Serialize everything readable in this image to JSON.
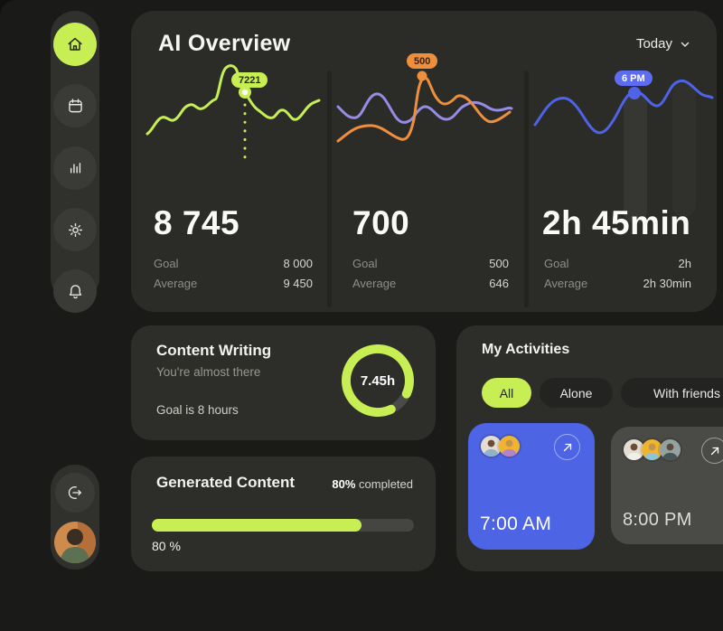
{
  "colors": {
    "lime": "#c7ef54",
    "orange": "#ee8f3d",
    "purple": "#958ce6",
    "blue": "#4f63e8",
    "tile_blue": "#4d64e4",
    "badge_blue": "#5d6cf0",
    "panel_bg": "#2b2b28",
    "page_bg": "#1a1a18"
  },
  "icons": {
    "sidebar": [
      "home-icon",
      "calendar-icon",
      "bar-chart-icon",
      "gear-icon",
      "bell-icon"
    ],
    "logout": "logout-icon",
    "period": "chevron-down-icon",
    "tile_link": "arrow-up-right-icon"
  },
  "header": {
    "title": "AI Overview",
    "period_selector": {
      "value": "Today"
    }
  },
  "stats": [
    {
      "badge": "7221",
      "value": "8 745",
      "goal_label": "Goal",
      "goal_value": "8 000",
      "average_label": "Average",
      "average_value": "9 450"
    },
    {
      "badge": "500",
      "value": "700",
      "goal_label": "Goal",
      "goal_value": "500",
      "average_label": "Average",
      "average_value": "646"
    },
    {
      "badge": "6 PM",
      "value": "2h 45min",
      "goal_label": "Goal",
      "goal_value": "2h",
      "average_label": "Average",
      "average_value": "2h 30min"
    }
  ],
  "content_writing": {
    "title": "Content Writing",
    "subtitle": "You're almost there",
    "goal_text": "Goal is 8 hours",
    "gauge_label": "7.45h",
    "current_hours": 7.45,
    "goal_hours": 8
  },
  "generated_content": {
    "title": "Generated Content",
    "completed_percent": "80%",
    "completed_suffix": " completed",
    "progress_percent": 80,
    "progress_label": "80 %"
  },
  "activities": {
    "title": "My Activities",
    "tabs": [
      {
        "label": "All",
        "active": true
      },
      {
        "label": "Alone",
        "active": false
      },
      {
        "label": "With friends",
        "active": false
      }
    ],
    "tiles": [
      {
        "time": "7:00 AM",
        "variant": "blue",
        "participants": 2
      },
      {
        "time": "8:00 PM",
        "variant": "dark",
        "participants": 3
      }
    ]
  },
  "chart_data": [
    {
      "type": "line",
      "name": "generations-sparkline",
      "highlight_label": "7221",
      "series": [
        {
          "name": "generations",
          "color": "#c7ef54",
          "values": [
            6400,
            6800,
            7300,
            7100,
            7700,
            7500,
            8000,
            9800,
            9600,
            7221,
            6900,
            6500,
            6800,
            6600,
            7200,
            7600
          ]
        }
      ],
      "current": 8745,
      "goal": 8000,
      "average": 9450
    },
    {
      "type": "line",
      "name": "words-sparkline",
      "highlight_label": "500",
      "series": [
        {
          "name": "orange",
          "color": "#ee8f3d",
          "values": [
            310,
            340,
            360,
            330,
            300,
            500,
            420,
            380,
            430,
            400,
            330,
            360
          ]
        },
        {
          "name": "purple",
          "color": "#958ce6",
          "values": [
            430,
            400,
            470,
            420,
            380,
            430,
            410,
            440,
            450,
            430,
            420,
            425
          ]
        }
      ],
      "current": 700,
      "goal": 500,
      "average": 646
    },
    {
      "type": "line",
      "name": "time-sparkline",
      "highlight_label": "6 PM",
      "series": [
        {
          "name": "hours",
          "color": "#4f63e8",
          "values": [
            2.2,
            2.5,
            2.4,
            1.9,
            1.8,
            2.2,
            2.6,
            2.75,
            2.5,
            2.9,
            2.95,
            2.7,
            2.65
          ]
        }
      ],
      "current": "2h 45min",
      "goal": "2h",
      "average": "2h 30min"
    }
  ]
}
